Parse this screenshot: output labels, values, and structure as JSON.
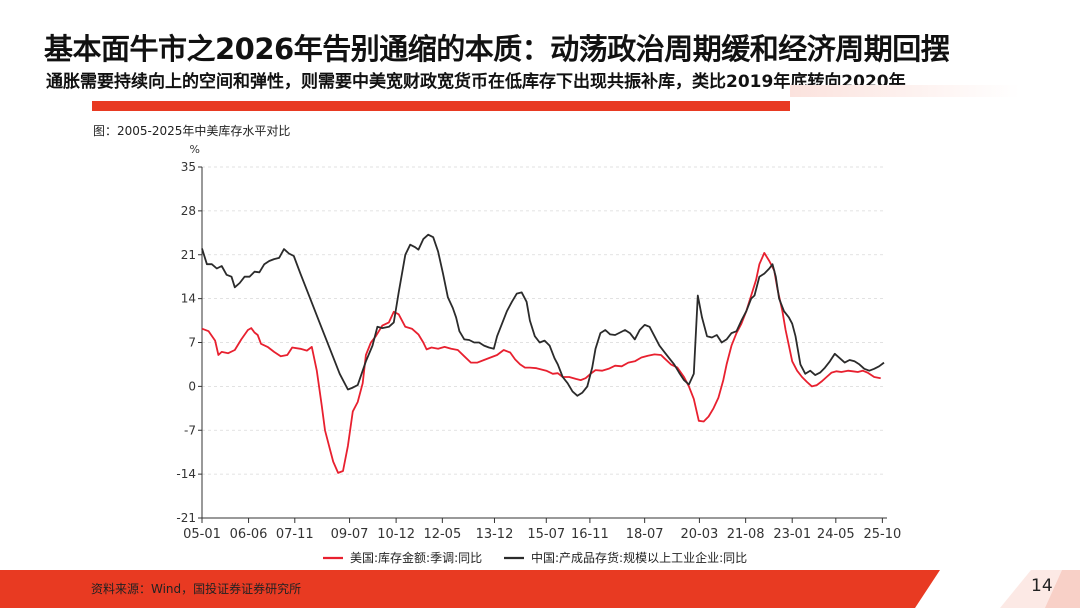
{
  "slide": {
    "title": "基本面牛市之2026年告别通缩的本质：动荡政治周期缓和经济周期回摆",
    "subtitle": "通胀需要持续向上的空间和弹性，则需要中美宽财政宽货币在低库存下出现共振补库，类比2019年底转向2020年",
    "source": "资料来源：Wind，国投证券证券研究所",
    "page_number": "14"
  },
  "colors": {
    "accent": "#e83a22",
    "us_series": "#e8202f",
    "cn_series": "#2b2b2b"
  },
  "chart_data": {
    "type": "line",
    "title": "图：2005-2025年中美库存水平对比",
    "unit_label": "%",
    "ylim": [
      -21,
      35
    ],
    "yticks": [
      35,
      28,
      21,
      14,
      7,
      0,
      -7,
      -14,
      -21
    ],
    "x_range": [
      2005.0,
      2025.83
    ],
    "xticks": [
      {
        "label": "05-01",
        "t": 2005.0
      },
      {
        "label": "06-06",
        "t": 2006.42
      },
      {
        "label": "07-11",
        "t": 2007.83
      },
      {
        "label": "09-07",
        "t": 2009.5
      },
      {
        "label": "10-12",
        "t": 2010.92
      },
      {
        "label": "12-05",
        "t": 2012.33
      },
      {
        "label": "13-12",
        "t": 2013.92
      },
      {
        "label": "15-07",
        "t": 2015.5
      },
      {
        "label": "16-11",
        "t": 2016.83
      },
      {
        "label": "18-07",
        "t": 2018.5
      },
      {
        "label": "20-03",
        "t": 2020.17
      },
      {
        "label": "21-08",
        "t": 2021.58
      },
      {
        "label": "23-01",
        "t": 2023.0
      },
      {
        "label": "24-05",
        "t": 2024.33
      },
      {
        "label": "25-10",
        "t": 2025.75
      }
    ],
    "series": [
      {
        "name": "美国:库存金额:季调:同比",
        "color": "#e8202f",
        "points": [
          [
            2005.0,
            9.2
          ],
          [
            2005.2,
            8.8
          ],
          [
            2005.4,
            7.3
          ],
          [
            2005.5,
            5.0
          ],
          [
            2005.6,
            5.5
          ],
          [
            2005.8,
            5.3
          ],
          [
            2006.0,
            5.8
          ],
          [
            2006.2,
            7.5
          ],
          [
            2006.4,
            9.0
          ],
          [
            2006.5,
            9.3
          ],
          [
            2006.6,
            8.6
          ],
          [
            2006.7,
            8.2
          ],
          [
            2006.8,
            6.8
          ],
          [
            2007.0,
            6.3
          ],
          [
            2007.2,
            5.5
          ],
          [
            2007.4,
            4.8
          ],
          [
            2007.6,
            5.0
          ],
          [
            2007.75,
            6.2
          ],
          [
            2008.0,
            6.0
          ],
          [
            2008.2,
            5.7
          ],
          [
            2008.35,
            6.3
          ],
          [
            2008.5,
            2.5
          ],
          [
            2008.65,
            -3.0
          ],
          [
            2008.75,
            -7.0
          ],
          [
            2008.9,
            -10.0
          ],
          [
            2009.0,
            -12.0
          ],
          [
            2009.15,
            -13.8
          ],
          [
            2009.3,
            -13.5
          ],
          [
            2009.45,
            -9.5
          ],
          [
            2009.6,
            -4.0
          ],
          [
            2009.75,
            -2.5
          ],
          [
            2009.9,
            0.5
          ],
          [
            2010.0,
            5.0
          ],
          [
            2010.15,
            7.0
          ],
          [
            2010.3,
            8.0
          ],
          [
            2010.5,
            9.7
          ],
          [
            2010.7,
            10.2
          ],
          [
            2010.85,
            11.9
          ],
          [
            2011.0,
            11.5
          ],
          [
            2011.2,
            9.5
          ],
          [
            2011.4,
            9.2
          ],
          [
            2011.6,
            8.3
          ],
          [
            2011.75,
            7.0
          ],
          [
            2011.85,
            5.9
          ],
          [
            2012.0,
            6.2
          ],
          [
            2012.2,
            6.0
          ],
          [
            2012.4,
            6.3
          ],
          [
            2012.6,
            6.0
          ],
          [
            2012.8,
            5.8
          ],
          [
            2013.0,
            4.8
          ],
          [
            2013.2,
            3.8
          ],
          [
            2013.4,
            3.8
          ],
          [
            2013.6,
            4.2
          ],
          [
            2013.8,
            4.6
          ],
          [
            2014.0,
            5.0
          ],
          [
            2014.2,
            5.8
          ],
          [
            2014.4,
            5.4
          ],
          [
            2014.55,
            4.3
          ],
          [
            2014.7,
            3.5
          ],
          [
            2014.85,
            3.0
          ],
          [
            2015.0,
            3.0
          ],
          [
            2015.2,
            2.9
          ],
          [
            2015.5,
            2.5
          ],
          [
            2015.7,
            2.0
          ],
          [
            2015.85,
            2.1
          ],
          [
            2016.0,
            1.5
          ],
          [
            2016.2,
            1.5
          ],
          [
            2016.4,
            1.2
          ],
          [
            2016.55,
            1.0
          ],
          [
            2016.7,
            1.3
          ],
          [
            2016.85,
            2.0
          ],
          [
            2017.0,
            2.6
          ],
          [
            2017.2,
            2.5
          ],
          [
            2017.4,
            2.8
          ],
          [
            2017.6,
            3.3
          ],
          [
            2017.8,
            3.2
          ],
          [
            2018.0,
            3.8
          ],
          [
            2018.2,
            4.0
          ],
          [
            2018.4,
            4.6
          ],
          [
            2018.6,
            4.9
          ],
          [
            2018.8,
            5.1
          ],
          [
            2019.0,
            5.0
          ],
          [
            2019.1,
            4.5
          ],
          [
            2019.3,
            3.5
          ],
          [
            2019.5,
            3.0
          ],
          [
            2019.7,
            1.5
          ],
          [
            2019.85,
            0.0
          ],
          [
            2020.0,
            -2.0
          ],
          [
            2020.15,
            -5.5
          ],
          [
            2020.3,
            -5.6
          ],
          [
            2020.45,
            -4.8
          ],
          [
            2020.6,
            -3.5
          ],
          [
            2020.75,
            -1.8
          ],
          [
            2020.9,
            1.0
          ],
          [
            2021.0,
            3.5
          ],
          [
            2021.15,
            6.5
          ],
          [
            2021.3,
            8.5
          ],
          [
            2021.45,
            10.0
          ],
          [
            2021.6,
            12.0
          ],
          [
            2021.75,
            14.5
          ],
          [
            2021.9,
            17.0
          ],
          [
            2022.0,
            19.5
          ],
          [
            2022.15,
            21.3
          ],
          [
            2022.3,
            20.0
          ],
          [
            2022.45,
            18.5
          ],
          [
            2022.55,
            15.5
          ],
          [
            2022.7,
            12.0
          ],
          [
            2022.8,
            9.0
          ],
          [
            2022.9,
            6.5
          ],
          [
            2023.0,
            4.0
          ],
          [
            2023.15,
            2.5
          ],
          [
            2023.3,
            1.5
          ],
          [
            2023.45,
            0.7
          ],
          [
            2023.6,
            0.0
          ],
          [
            2023.75,
            0.2
          ],
          [
            2023.9,
            0.8
          ],
          [
            2024.05,
            1.5
          ],
          [
            2024.2,
            2.2
          ],
          [
            2024.35,
            2.4
          ],
          [
            2024.5,
            2.3
          ],
          [
            2024.7,
            2.5
          ],
          [
            2024.85,
            2.4
          ],
          [
            2025.0,
            2.3
          ],
          [
            2025.15,
            2.5
          ],
          [
            2025.3,
            2.2
          ],
          [
            2025.5,
            1.5
          ],
          [
            2025.7,
            1.3
          ]
        ]
      },
      {
        "name": "中国:产成品存货:规模以上工业企业:同比",
        "color": "#2b2b2b",
        "points": [
          [
            2005.0,
            22.0
          ],
          [
            2005.15,
            19.5
          ],
          [
            2005.3,
            19.5
          ],
          [
            2005.45,
            18.8
          ],
          [
            2005.6,
            19.2
          ],
          [
            2005.75,
            17.8
          ],
          [
            2005.9,
            17.5
          ],
          [
            2006.0,
            15.8
          ],
          [
            2006.15,
            16.5
          ],
          [
            2006.3,
            17.5
          ],
          [
            2006.45,
            17.5
          ],
          [
            2006.6,
            18.3
          ],
          [
            2006.75,
            18.2
          ],
          [
            2006.9,
            19.5
          ],
          [
            2007.05,
            20.0
          ],
          [
            2007.2,
            20.3
          ],
          [
            2007.35,
            20.5
          ],
          [
            2007.5,
            21.9
          ],
          [
            2007.65,
            21.2
          ],
          [
            2007.8,
            20.8
          ],
          [
            2008.0,
            18.0
          ],
          [
            2008.3,
            14.0
          ],
          [
            2008.6,
            10.0
          ],
          [
            2008.9,
            6.0
          ],
          [
            2009.2,
            2.0
          ],
          [
            2009.45,
            -0.5
          ],
          [
            2009.6,
            -0.2
          ],
          [
            2009.75,
            0.2
          ],
          [
            2010.0,
            4.0
          ],
          [
            2010.2,
            6.5
          ],
          [
            2010.35,
            9.5
          ],
          [
            2010.5,
            9.3
          ],
          [
            2010.7,
            9.5
          ],
          [
            2010.85,
            10.2
          ],
          [
            2011.0,
            15.0
          ],
          [
            2011.2,
            21.0
          ],
          [
            2011.35,
            22.6
          ],
          [
            2011.5,
            22.2
          ],
          [
            2011.6,
            21.8
          ],
          [
            2011.75,
            23.5
          ],
          [
            2011.9,
            24.2
          ],
          [
            2012.05,
            23.8
          ],
          [
            2012.2,
            21.5
          ],
          [
            2012.35,
            18.0
          ],
          [
            2012.5,
            14.2
          ],
          [
            2012.65,
            12.5
          ],
          [
            2012.75,
            11.0
          ],
          [
            2012.85,
            8.8
          ],
          [
            2013.0,
            7.5
          ],
          [
            2013.15,
            7.4
          ],
          [
            2013.3,
            7.0
          ],
          [
            2013.45,
            7.0
          ],
          [
            2013.6,
            6.5
          ],
          [
            2013.75,
            6.2
          ],
          [
            2013.9,
            6.0
          ],
          [
            2014.0,
            8.0
          ],
          [
            2014.15,
            10.0
          ],
          [
            2014.3,
            12.0
          ],
          [
            2014.45,
            13.5
          ],
          [
            2014.6,
            14.8
          ],
          [
            2014.75,
            15.0
          ],
          [
            2014.9,
            13.5
          ],
          [
            2015.0,
            10.5
          ],
          [
            2015.15,
            8.0
          ],
          [
            2015.3,
            7.0
          ],
          [
            2015.45,
            7.3
          ],
          [
            2015.6,
            6.5
          ],
          [
            2015.75,
            4.5
          ],
          [
            2015.85,
            3.5
          ],
          [
            2016.0,
            1.5
          ],
          [
            2016.15,
            0.5
          ],
          [
            2016.3,
            -0.8
          ],
          [
            2016.45,
            -1.5
          ],
          [
            2016.6,
            -1.0
          ],
          [
            2016.75,
            0.0
          ],
          [
            2016.9,
            3.0
          ],
          [
            2017.0,
            6.0
          ],
          [
            2017.15,
            8.5
          ],
          [
            2017.3,
            9.0
          ],
          [
            2017.45,
            8.3
          ],
          [
            2017.6,
            8.2
          ],
          [
            2017.75,
            8.6
          ],
          [
            2017.9,
            9.0
          ],
          [
            2018.05,
            8.5
          ],
          [
            2018.2,
            7.5
          ],
          [
            2018.35,
            9.0
          ],
          [
            2018.5,
            9.8
          ],
          [
            2018.65,
            9.5
          ],
          [
            2018.8,
            8.0
          ],
          [
            2018.95,
            6.5
          ],
          [
            2019.1,
            5.5
          ],
          [
            2019.25,
            4.5
          ],
          [
            2019.4,
            3.5
          ],
          [
            2019.55,
            2.2
          ],
          [
            2019.7,
            1.0
          ],
          [
            2019.85,
            0.3
          ],
          [
            2020.0,
            2.0
          ],
          [
            2020.12,
            14.5
          ],
          [
            2020.25,
            11.0
          ],
          [
            2020.4,
            8.0
          ],
          [
            2020.55,
            7.8
          ],
          [
            2020.7,
            8.2
          ],
          [
            2020.85,
            7.0
          ],
          [
            2021.0,
            7.5
          ],
          [
            2021.15,
            8.5
          ],
          [
            2021.3,
            8.8
          ],
          [
            2021.45,
            10.5
          ],
          [
            2021.6,
            12.0
          ],
          [
            2021.75,
            14.0
          ],
          [
            2021.85,
            14.5
          ],
          [
            2022.0,
            17.5
          ],
          [
            2022.15,
            18.0
          ],
          [
            2022.3,
            18.8
          ],
          [
            2022.4,
            19.5
          ],
          [
            2022.5,
            17.5
          ],
          [
            2022.6,
            14.0
          ],
          [
            2022.75,
            12.0
          ],
          [
            2022.9,
            11.0
          ],
          [
            2023.0,
            10.0
          ],
          [
            2023.1,
            8.0
          ],
          [
            2023.25,
            3.5
          ],
          [
            2023.4,
            2.0
          ],
          [
            2023.55,
            2.5
          ],
          [
            2023.7,
            1.8
          ],
          [
            2023.85,
            2.2
          ],
          [
            2024.0,
            3.0
          ],
          [
            2024.15,
            4.0
          ],
          [
            2024.3,
            5.2
          ],
          [
            2024.45,
            4.5
          ],
          [
            2024.6,
            3.8
          ],
          [
            2024.75,
            4.2
          ],
          [
            2024.9,
            4.0
          ],
          [
            2025.05,
            3.5
          ],
          [
            2025.2,
            2.8
          ],
          [
            2025.35,
            2.5
          ],
          [
            2025.5,
            2.8
          ],
          [
            2025.65,
            3.2
          ],
          [
            2025.8,
            3.8
          ]
        ]
      }
    ]
  }
}
